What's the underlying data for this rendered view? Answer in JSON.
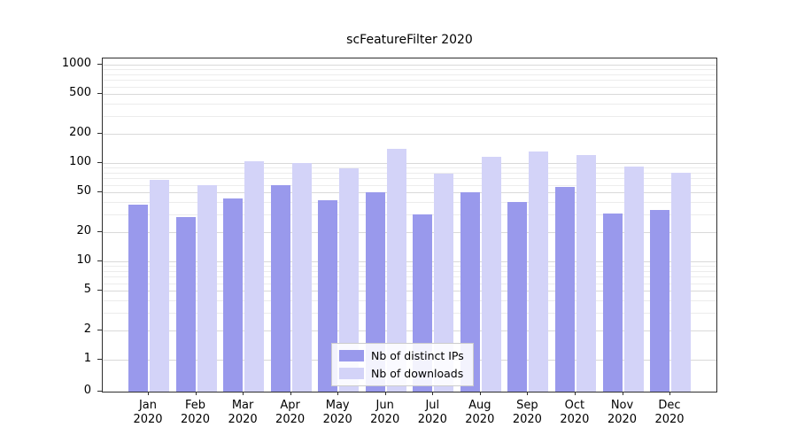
{
  "chart_data": {
    "type": "bar",
    "title": "scFeatureFilter 2020",
    "categories": [
      "Jan 2020",
      "Feb 2020",
      "Mar 2020",
      "Apr 2020",
      "May 2020",
      "Jun 2020",
      "Jul 2020",
      "Aug 2020",
      "Sep 2020",
      "Oct 2020",
      "Nov 2020",
      "Dec 2020"
    ],
    "series": [
      {
        "name": "Nb of distinct IPs",
        "color": "#9999ec",
        "values": [
          38,
          28,
          44,
          60,
          42,
          50,
          30,
          50,
          40,
          57,
          31,
          33
        ]
      },
      {
        "name": "Nb of downloads",
        "color": "#d3d3f8",
        "values": [
          67,
          60,
          105,
          100,
          88,
          140,
          78,
          115,
          130,
          120,
          92,
          80
        ]
      }
    ],
    "yscale": "symlog",
    "yticks": [
      0,
      1,
      2,
      5,
      10,
      20,
      50,
      100,
      200,
      500,
      1000
    ],
    "ylim": [
      0,
      1200
    ],
    "grid": true,
    "legend_position": "lower center"
  }
}
